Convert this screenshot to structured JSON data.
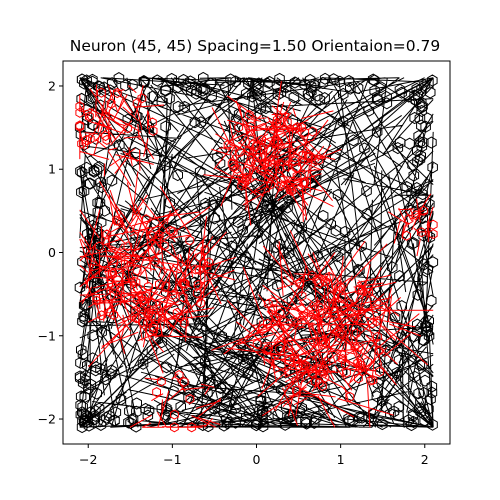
{
  "chart_data": {
    "type": "line",
    "title": "Neuron (45, 45) Spacing=1.50 Orientaion=0.79",
    "xlabel": "",
    "ylabel": "",
    "xlim": [
      -2.3,
      2.3
    ],
    "ylim": [
      -2.3,
      2.3
    ],
    "x_ticks": [
      {
        "value": -2,
        "label": "−2"
      },
      {
        "value": -1,
        "label": "−1"
      },
      {
        "value": 0,
        "label": "0"
      },
      {
        "value": 1,
        "label": "1"
      },
      {
        "value": 2,
        "label": "2"
      }
    ],
    "y_ticks": [
      {
        "value": 2,
        "label": "2"
      },
      {
        "value": 1,
        "label": "1"
      },
      {
        "value": 0,
        "label": "0"
      },
      {
        "value": -1,
        "label": "−1"
      },
      {
        "value": -2,
        "label": "−2"
      }
    ],
    "grid": false,
    "series": [
      {
        "color": "#000000",
        "role": "trajectory",
        "line_count": 420,
        "marker_count": 520
      },
      {
        "color": "#ff0000",
        "role": "firing-fields",
        "fields": [
          {
            "center": [
              -1.7,
              1.55
            ],
            "radius": 0.5,
            "segments": 55
          },
          {
            "center": [
              0.2,
              1.2
            ],
            "radius": 0.55,
            "segments": 150
          },
          {
            "center": [
              -1.3,
              -0.25
            ],
            "radius": 0.75,
            "segments": 190
          },
          {
            "center": [
              0.8,
              -1.0
            ],
            "radius": 0.8,
            "segments": 210
          },
          {
            "center": [
              1.95,
              0.35
            ],
            "radius": 0.25,
            "segments": 20
          },
          {
            "center": [
              -0.9,
              -1.9
            ],
            "radius": 0.45,
            "segments": 25
          }
        ]
      }
    ]
  }
}
